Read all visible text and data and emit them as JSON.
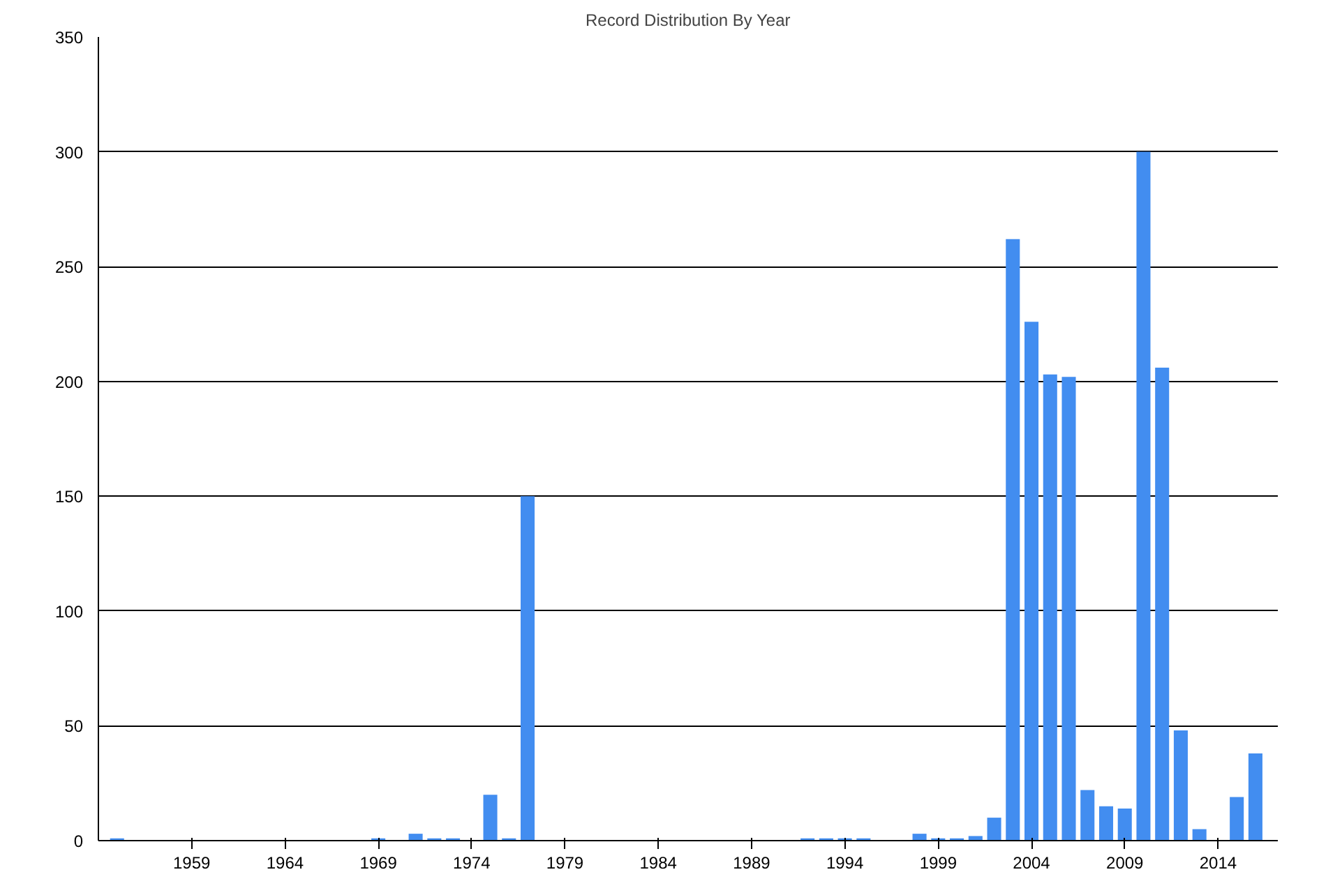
{
  "chart_data": {
    "type": "bar",
    "title": "Record Distribution By Year",
    "x": [
      1955,
      1969,
      1971,
      1972,
      1973,
      1975,
      1976,
      1977,
      1992,
      1993,
      1994,
      1995,
      1998,
      1999,
      2000,
      2001,
      2002,
      2003,
      2004,
      2005,
      2006,
      2007,
      2008,
      2009,
      2010,
      2011,
      2012,
      2013,
      2015,
      2016
    ],
    "values": [
      1,
      1,
      3,
      1,
      1,
      20,
      1,
      150,
      1,
      1,
      1,
      1,
      3,
      1,
      1,
      2,
      10,
      262,
      226,
      203,
      202,
      22,
      15,
      14,
      300,
      206,
      48,
      5,
      19,
      38
    ],
    "color": "#428df0",
    "xlim": [
      1954,
      2017.2
    ],
    "xticks": [
      1959,
      1964,
      1969,
      1974,
      1979,
      1984,
      1989,
      1994,
      1999,
      2004,
      2009,
      2014
    ],
    "ylim": [
      0,
      350
    ],
    "yticks": [
      0,
      50,
      100,
      150,
      200,
      250,
      300,
      350
    ],
    "grid": "y"
  }
}
